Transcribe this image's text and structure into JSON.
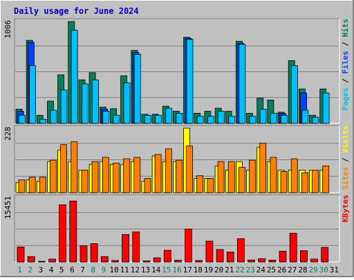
{
  "title": "Daily usage for June 2024",
  "colors": {
    "background": "#c0c0c0",
    "title_text": "#0000c0",
    "hits": "#00805c",
    "files": "#0040ff",
    "pages": "#00c0ff",
    "visits": "#ffff00",
    "sites": "#ff8000",
    "kbytes": "#ff0000",
    "weekend_label": "#00805c",
    "weekday_label": "#000000",
    "gridline": "#808080"
  },
  "chart_data": [
    {
      "type": "bar",
      "name": "hits-files-pages",
      "ylim": [
        0,
        1006
      ],
      "max_label": "1006",
      "legend_label_parts": [
        {
          "text": "Pages",
          "color_key": "pages"
        },
        {
          "text": " / ",
          "color_key": "weekday_label"
        },
        {
          "text": "Files",
          "color_key": "files"
        },
        {
          "text": " / ",
          "color_key": "weekday_label"
        },
        {
          "text": "Hits",
          "color_key": "hits"
        }
      ],
      "categories": [
        "1",
        "2",
        "3",
        "4",
        "5",
        "6",
        "7",
        "8",
        "9",
        "10",
        "11",
        "12",
        "13",
        "14",
        "15",
        "16",
        "17",
        "18",
        "19",
        "20",
        "21",
        "22",
        "23",
        "24",
        "25",
        "26",
        "27",
        "28",
        "29",
        "30",
        "31"
      ],
      "series": [
        {
          "name": "Hits",
          "color_key": "hits",
          "values": [
            140,
            820,
            80,
            220,
            480,
            1006,
            430,
            500,
            160,
            145,
            470,
            720,
            90,
            90,
            170,
            120,
            850,
            100,
            120,
            150,
            120,
            810,
            100,
            250,
            230,
            110,
            620,
            340,
            80,
            340,
            0
          ]
        },
        {
          "name": "Files",
          "color_key": "files",
          "values": [
            120,
            800,
            0,
            0,
            0,
            0,
            0,
            0,
            140,
            0,
            0,
            700,
            0,
            0,
            0,
            0,
            840,
            0,
            0,
            0,
            0,
            790,
            0,
            0,
            0,
            100,
            0,
            300,
            0,
            0,
            0
          ]
        },
        {
          "name": "Pages",
          "color_key": "pages",
          "values": [
            80,
            570,
            40,
            130,
            330,
            920,
            390,
            430,
            120,
            80,
            400,
            680,
            80,
            80,
            150,
            100,
            830,
            70,
            70,
            120,
            70,
            780,
            70,
            140,
            100,
            80,
            570,
            130,
            60,
            300,
            0
          ]
        }
      ]
    },
    {
      "type": "bar",
      "name": "visits-sites",
      "ylim": [
        0,
        228
      ],
      "max_label": "228",
      "legend_label_parts": [
        {
          "text": "Sites",
          "color_key": "sites"
        },
        {
          "text": " / ",
          "color_key": "weekday_label"
        },
        {
          "text": "Visits",
          "color_key": "visits"
        }
      ],
      "categories": [
        "1",
        "2",
        "3",
        "4",
        "5",
        "6",
        "7",
        "8",
        "9",
        "10",
        "11",
        "12",
        "13",
        "14",
        "15",
        "16",
        "17",
        "18",
        "19",
        "20",
        "21",
        "22",
        "23",
        "24",
        "25",
        "26",
        "27",
        "28",
        "29",
        "30",
        "31"
      ],
      "series": [
        {
          "name": "Visits",
          "color_key": "visits",
          "values": [
            35,
            45,
            40,
            110,
            150,
            110,
            80,
            100,
            110,
            100,
            100,
            110,
            40,
            130,
            110,
            110,
            228,
            50,
            50,
            95,
            80,
            110,
            80,
            160,
            110,
            80,
            80,
            80,
            80,
            80,
            0
          ]
        },
        {
          "name": "Sites",
          "color_key": "sites",
          "values": [
            45,
            55,
            55,
            115,
            170,
            180,
            80,
            110,
            125,
            105,
            120,
            125,
            50,
            135,
            155,
            115,
            165,
            60,
            50,
            110,
            110,
            90,
            115,
            175,
            125,
            75,
            120,
            70,
            80,
            95,
            0
          ]
        }
      ]
    },
    {
      "type": "bar",
      "name": "kbytes",
      "ylim": [
        0,
        15451
      ],
      "max_label": "15451",
      "legend_label_parts": [
        {
          "text": "KBytes",
          "color_key": "kbytes"
        }
      ],
      "categories": [
        "1",
        "2",
        "3",
        "4",
        "5",
        "6",
        "7",
        "8",
        "9",
        "10",
        "11",
        "12",
        "13",
        "14",
        "15",
        "16",
        "17",
        "18",
        "19",
        "20",
        "21",
        "22",
        "23",
        "24",
        "25",
        "26",
        "27",
        "28",
        "29",
        "30",
        "31"
      ],
      "series": [
        {
          "name": "KBytes",
          "color_key": "kbytes",
          "values": [
            3600,
            1300,
            150,
            700,
            13700,
            14600,
            3900,
            4400,
            1300,
            350,
            6600,
            7200,
            270,
            1000,
            2800,
            420,
            7900,
            350,
            5000,
            3000,
            2400,
            5600,
            470,
            800,
            450,
            2600,
            6900,
            2700,
            700,
            3500,
            0
          ]
        }
      ]
    }
  ],
  "day_labels": [
    "1",
    "2",
    "3",
    "4",
    "5",
    "6",
    "7",
    "8",
    "9",
    "10",
    "11",
    "12",
    "13",
    "14",
    "15",
    "16",
    "17",
    "18",
    "19",
    "20",
    "21",
    "22",
    "23",
    "24",
    "25",
    "26",
    "27",
    "28",
    "29",
    "30",
    "31"
  ],
  "weekend_days": [
    "1",
    "2",
    "8",
    "9",
    "15",
    "16",
    "22",
    "23",
    "29",
    "30"
  ]
}
